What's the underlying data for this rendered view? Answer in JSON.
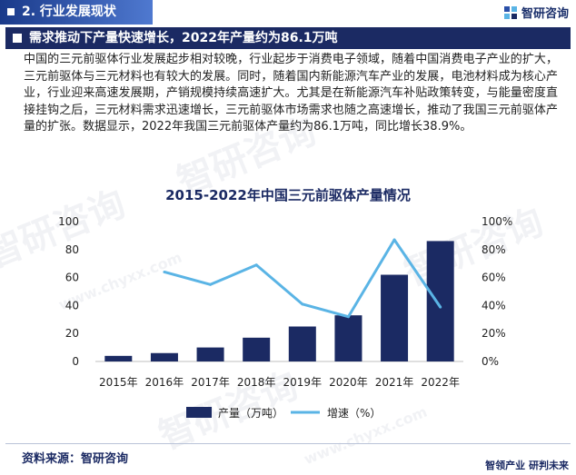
{
  "header": {
    "section_label": "2. 行业发展现状",
    "brand": "智研咨询"
  },
  "title_bar": {
    "text": "需求推动下产量快速增长，2022年产量约为86.1万吨"
  },
  "body_text": "中国的三元前驱体行业发展起步相对较晚，行业起步于消费电子领域，随着中国消费电子产业的扩大，三元前驱体与三元材料也有较大的发展。同时，随着国内新能源汽车产业的发展，电池材料成为核心产业，行业迎来高速发展期，产销规模持续高速扩大。尤其是在新能源汽车补贴政策转变，与能量密度直接挂钩之后，三元材料需求迅速增长，三元前驱体市场需求也随之高速增长，推动了我国三元前驱体产量的扩张。数据显示，2022年我国三元前驱体产量约为86.1万吨，同比增长38.9%。",
  "chart_data": {
    "type": "bar+line",
    "title": "2015-2022年中国三元前驱体产量情况",
    "categories": [
      "2015年",
      "2016年",
      "2017年",
      "2018年",
      "2019年",
      "2020年",
      "2021年",
      "2022年"
    ],
    "series": [
      {
        "name": "产量（万吨）",
        "type": "bar",
        "axis": "left",
        "color": "#1b2a63",
        "values": [
          4.0,
          6.0,
          10.0,
          17.0,
          25.0,
          33.0,
          62.0,
          86.1
        ]
      },
      {
        "name": "增速（%）",
        "type": "line",
        "axis": "right",
        "color": "#5ab4e5",
        "values": [
          null,
          64,
          55,
          69,
          41,
          32,
          87,
          38.9
        ]
      }
    ],
    "y_left": {
      "min": 0,
      "max": 100,
      "ticks": [
        "0",
        "20",
        "40",
        "60",
        "80",
        "100"
      ]
    },
    "y_right": {
      "min": 0,
      "max": 100,
      "ticks": [
        "0%",
        "20%",
        "40%",
        "60%",
        "80%",
        "100%"
      ]
    },
    "legend_position": "bottom"
  },
  "footer": {
    "source": "资料来源：智研咨询",
    "slogan": "智领产业 研判未来"
  },
  "watermark_text": "智研咨询",
  "watermark_url": "www.chyxx.com"
}
